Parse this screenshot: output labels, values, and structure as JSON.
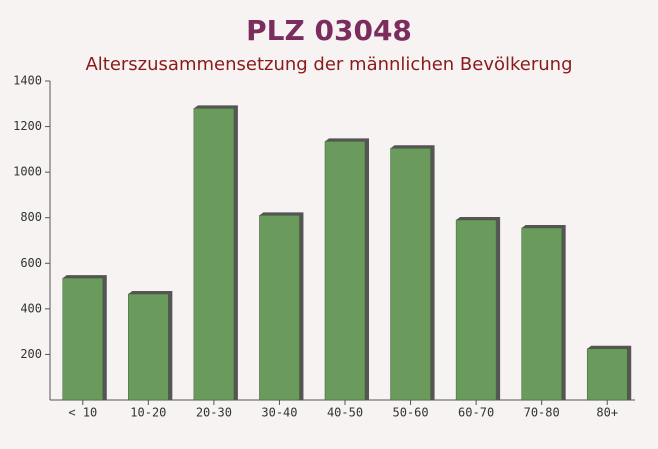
{
  "chart_data": {
    "type": "bar",
    "title": "PLZ 03048",
    "subtitle": "Alterszusammensetzung der männlichen Bevölkerung",
    "categories": [
      "< 10",
      "10-20",
      "20-30",
      "30-40",
      "40-50",
      "50-60",
      "60-70",
      "70-80",
      "80+"
    ],
    "values": [
      535,
      465,
      1280,
      810,
      1135,
      1105,
      790,
      755,
      225
    ],
    "color": "#6a9b5c",
    "ylim": [
      0,
      1400
    ],
    "yticks": [
      200,
      400,
      600,
      800,
      1000,
      1200,
      1400
    ]
  }
}
